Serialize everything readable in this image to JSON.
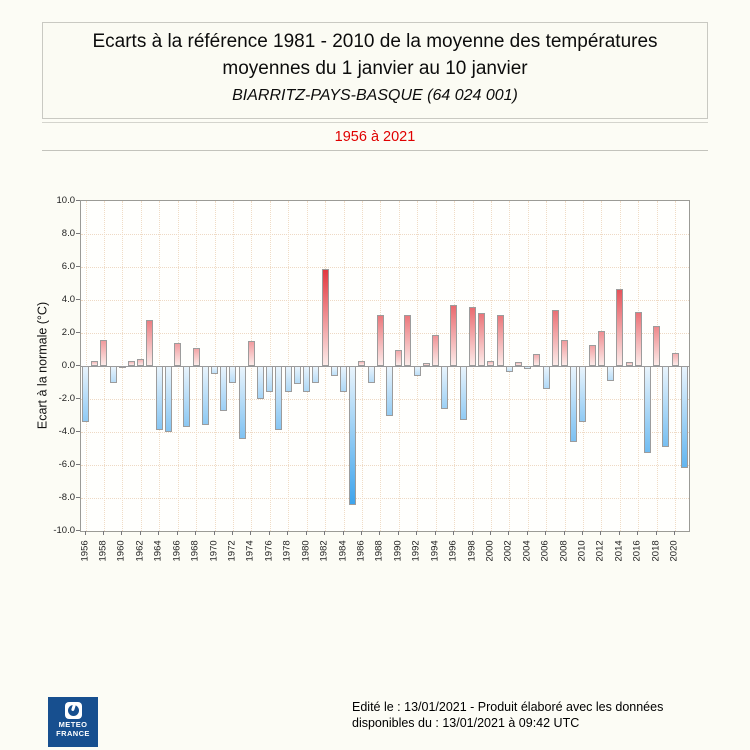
{
  "header": {
    "title_line1": "Ecarts à la référence 1981 - 2010 de la moyenne des températures",
    "title_line2": "moyennes du 1 janvier au 10 janvier",
    "station": "BIARRITZ-PAYS-BASQUE (64 024 001)",
    "period": "1956 à 2021"
  },
  "chart_data": {
    "type": "bar",
    "title": "Ecarts à la référence 1981 - 2010 de la moyenne des températures moyennes du 1 janvier au 10 janvier",
    "subtitle": "BIARRITZ-PAYS-BASQUE (64 024 001)",
    "period": "1956 à 2021",
    "ylabel": "Ecart à la normale (°C)",
    "ylim": [
      -10,
      10
    ],
    "ytick_step": 2,
    "ytick_labels": [
      "10.0",
      "8.0",
      "6.0",
      "4.0",
      "2.0",
      "0.0",
      "-2.0",
      "-4.0",
      "-6.0",
      "-8.0",
      "-10.0"
    ],
    "xtick_labels": [
      "1956",
      "1958",
      "1960",
      "1962",
      "1964",
      "1966",
      "1968",
      "1970",
      "1972",
      "1974",
      "1976",
      "1978",
      "1980",
      "1982",
      "1984",
      "1986",
      "1988",
      "1990",
      "1992",
      "1994",
      "1996",
      "1998",
      "2000",
      "2002",
      "2004",
      "2006",
      "2008",
      "2010",
      "2012",
      "2014",
      "2016",
      "2018",
      "2020"
    ],
    "years": [
      1956,
      1957,
      1958,
      1959,
      1960,
      1961,
      1962,
      1963,
      1964,
      1965,
      1966,
      1967,
      1968,
      1969,
      1970,
      1971,
      1972,
      1973,
      1974,
      1975,
      1976,
      1977,
      1978,
      1979,
      1980,
      1981,
      1982,
      1983,
      1984,
      1985,
      1986,
      1987,
      1988,
      1989,
      1990,
      1991,
      1992,
      1993,
      1994,
      1995,
      1996,
      1997,
      1998,
      1999,
      2000,
      2001,
      2002,
      2003,
      2004,
      2005,
      2006,
      2007,
      2008,
      2009,
      2010,
      2011,
      2012,
      2013,
      2014,
      2015,
      2016,
      2017,
      2018,
      2019,
      2020,
      2021
    ],
    "values": [
      -3.4,
      0.3,
      1.6,
      -1.0,
      -0.05,
      0.3,
      0.45,
      2.8,
      -3.9,
      -4.0,
      1.4,
      -3.7,
      1.1,
      -3.6,
      -0.5,
      -2.7,
      -1.0,
      -4.4,
      1.5,
      -2.0,
      -1.6,
      -3.9,
      -1.6,
      -1.1,
      -1.6,
      -1.0,
      5.9,
      -0.6,
      -1.6,
      -8.4,
      0.3,
      -1.0,
      3.1,
      -3.0,
      1.0,
      3.1,
      -0.6,
      0.2,
      1.9,
      -2.6,
      3.7,
      -3.3,
      3.6,
      3.2,
      0.3,
      3.1,
      -0.35,
      0.25,
      -0.2,
      0.7,
      -1.4,
      3.4,
      1.6,
      -4.6,
      -3.4,
      1.3,
      2.1,
      -0.9,
      4.65,
      0.25,
      3.3,
      -5.3,
      2.4,
      -4.9,
      0.8,
      -6.2
    ],
    "grid": "dotted",
    "legend": "none",
    "colors": {
      "positive_full": "#e23840",
      "positive_pale": "#fcebe9",
      "negative_full": "#3ea4ec",
      "negative_pale": "#e9f4fc",
      "bar_border": "#9c9c9c",
      "period_text": "#e00000",
      "logo_background": "#174f8f"
    }
  },
  "footer": {
    "line1": "Edité le : 13/01/2021 - Produit élaboré avec les données",
    "line2": "disponibles du : 13/01/2021 à 09:42 UTC",
    "logo_line1": "METEO",
    "logo_line2": "FRANCE"
  }
}
